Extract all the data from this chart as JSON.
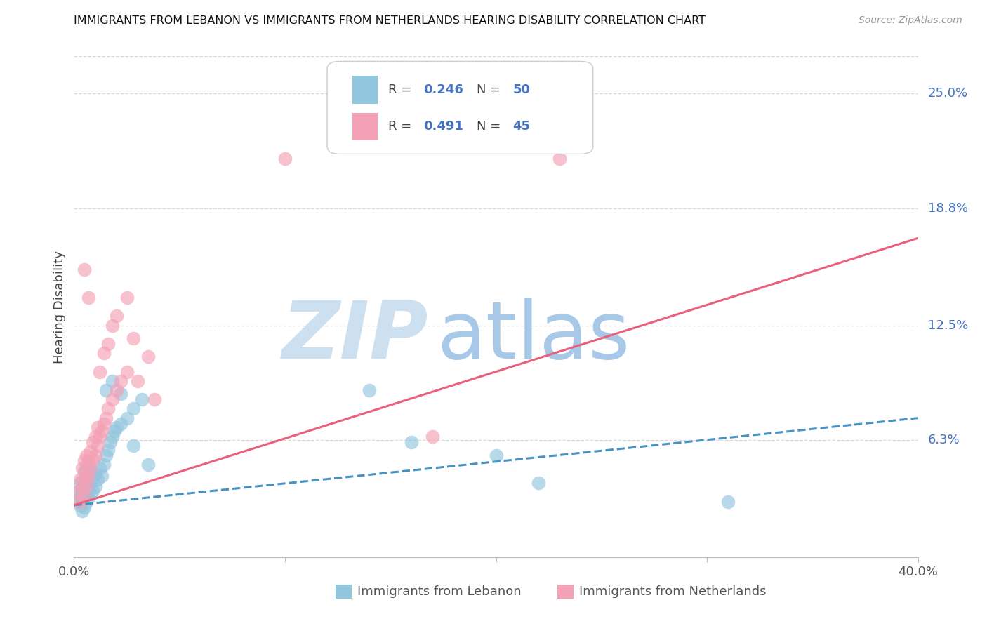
{
  "title": "IMMIGRANTS FROM LEBANON VS IMMIGRANTS FROM NETHERLANDS HEARING DISABILITY CORRELATION CHART",
  "source": "Source: ZipAtlas.com",
  "ylabel": "Hearing Disability",
  "xlim": [
    0.0,
    0.4
  ],
  "ylim": [
    0.0,
    0.27
  ],
  "ytick_values": [
    0.063,
    0.125,
    0.188,
    0.25
  ],
  "ytick_labels": [
    "6.3%",
    "12.5%",
    "18.8%",
    "25.0%"
  ],
  "xtick_values": [
    0.0,
    0.4
  ],
  "xtick_labels": [
    "0.0%",
    "40.0%"
  ],
  "lebanon_R": "0.246",
  "lebanon_N": "50",
  "netherlands_R": "0.491",
  "netherlands_N": "45",
  "lebanon_color": "#92c5de",
  "netherlands_color": "#f4a0b5",
  "lebanon_trend_color": "#4393c3",
  "netherlands_trend_color": "#e8607a",
  "watermark_zip_color": "#cce0f0",
  "watermark_atlas_color": "#a8c8e8",
  "background_color": "#ffffff",
  "grid_color": "#d8d8d8",
  "right_label_color": "#4472c4",
  "lebanon_x": [
    0.002,
    0.002,
    0.003,
    0.003,
    0.003,
    0.004,
    0.004,
    0.004,
    0.005,
    0.005,
    0.005,
    0.005,
    0.006,
    0.006,
    0.006,
    0.006,
    0.007,
    0.007,
    0.007,
    0.008,
    0.008,
    0.008,
    0.009,
    0.009,
    0.01,
    0.01,
    0.011,
    0.012,
    0.013,
    0.014,
    0.015,
    0.016,
    0.017,
    0.018,
    0.019,
    0.02,
    0.022,
    0.025,
    0.028,
    0.032,
    0.015,
    0.018,
    0.022,
    0.028,
    0.035,
    0.14,
    0.16,
    0.2,
    0.22,
    0.31
  ],
  "lebanon_y": [
    0.03,
    0.035,
    0.028,
    0.033,
    0.04,
    0.025,
    0.032,
    0.038,
    0.027,
    0.033,
    0.04,
    0.046,
    0.03,
    0.035,
    0.042,
    0.048,
    0.032,
    0.038,
    0.045,
    0.034,
    0.04,
    0.047,
    0.036,
    0.043,
    0.038,
    0.045,
    0.042,
    0.048,
    0.044,
    0.05,
    0.055,
    0.058,
    0.062,
    0.065,
    0.068,
    0.07,
    0.072,
    0.075,
    0.08,
    0.085,
    0.09,
    0.095,
    0.088,
    0.06,
    0.05,
    0.09,
    0.062,
    0.055,
    0.04,
    0.03
  ],
  "netherlands_x": [
    0.002,
    0.003,
    0.003,
    0.004,
    0.004,
    0.005,
    0.005,
    0.005,
    0.006,
    0.006,
    0.006,
    0.007,
    0.007,
    0.008,
    0.008,
    0.009,
    0.009,
    0.01,
    0.01,
    0.011,
    0.011,
    0.012,
    0.013,
    0.014,
    0.015,
    0.016,
    0.018,
    0.02,
    0.022,
    0.025,
    0.012,
    0.014,
    0.016,
    0.018,
    0.02,
    0.025,
    0.028,
    0.03,
    0.035,
    0.038,
    0.1,
    0.17,
    0.23,
    0.005,
    0.007
  ],
  "netherlands_y": [
    0.035,
    0.03,
    0.042,
    0.038,
    0.048,
    0.033,
    0.043,
    0.052,
    0.038,
    0.047,
    0.055,
    0.043,
    0.052,
    0.048,
    0.057,
    0.053,
    0.062,
    0.055,
    0.065,
    0.06,
    0.07,
    0.065,
    0.068,
    0.072,
    0.075,
    0.08,
    0.085,
    0.09,
    0.095,
    0.1,
    0.1,
    0.11,
    0.115,
    0.125,
    0.13,
    0.14,
    0.118,
    0.095,
    0.108,
    0.085,
    0.215,
    0.065,
    0.215,
    0.155,
    0.14
  ],
  "lebanon_trend_x": [
    0.0,
    0.4
  ],
  "lebanon_trend_y": [
    0.028,
    0.075
  ],
  "netherlands_trend_x": [
    0.0,
    0.4
  ],
  "netherlands_trend_y": [
    0.028,
    0.172
  ]
}
